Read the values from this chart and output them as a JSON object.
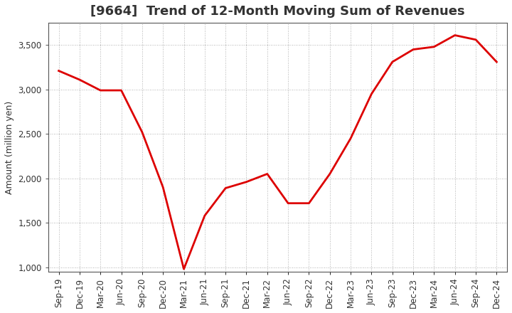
{
  "title": "[9664]  Trend of 12-Month Moving Sum of Revenues",
  "ylabel": "Amount (million yen)",
  "line_color": "#dd0000",
  "line_width": 2.0,
  "background_color": "#ffffff",
  "grid_color": "#999999",
  "ylim": [
    950,
    3750
  ],
  "yticks": [
    1000,
    1500,
    2000,
    2500,
    3000,
    3500
  ],
  "x_labels": [
    "Sep-19",
    "Dec-19",
    "Mar-20",
    "Jun-20",
    "Sep-20",
    "Dec-20",
    "Mar-21",
    "Jun-21",
    "Sep-21",
    "Dec-21",
    "Mar-22",
    "Jun-22",
    "Sep-22",
    "Dec-22",
    "Mar-23",
    "Jun-23",
    "Sep-23",
    "Dec-23",
    "Mar-24",
    "Jun-24",
    "Sep-24",
    "Dec-24"
  ],
  "values": [
    3210,
    3110,
    2990,
    2990,
    2520,
    1900,
    980,
    1580,
    1890,
    1960,
    2050,
    1720,
    1720,
    2050,
    2450,
    2950,
    3310,
    3450,
    3480,
    3610,
    3560,
    3310
  ],
  "title_fontsize": 13,
  "title_color": "#333333",
  "label_fontsize": 9,
  "tick_fontsize": 8.5
}
